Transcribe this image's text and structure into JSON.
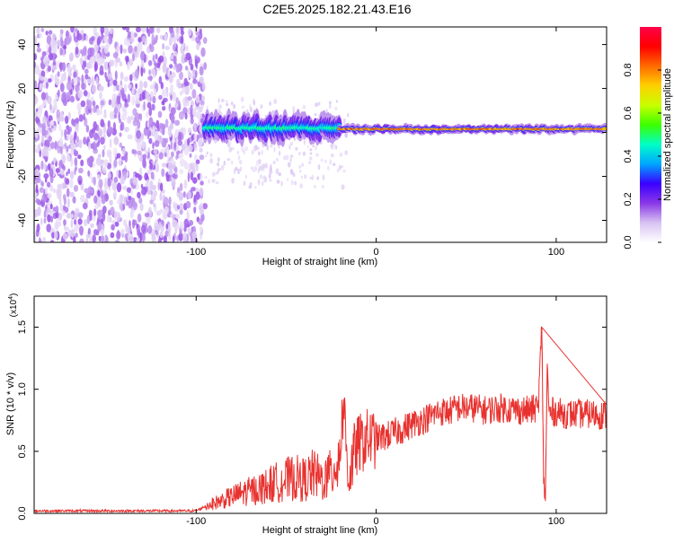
{
  "title": "C2E5.2025.182.21.43.E16",
  "colors": {
    "snr_line": "#e8322f",
    "frame": "#000000"
  },
  "chart_data": [
    {
      "type": "heatmap",
      "xlabel": "Height of straight line (km)",
      "ylabel": "Frequency (Hz)",
      "xlim": [
        -190,
        128
      ],
      "ylim": [
        -50,
        48
      ],
      "x_ticks": [
        -100,
        0,
        100
      ],
      "x_tick_labels": [
        "-100",
        "0",
        "100"
      ],
      "y_ticks": [
        -40,
        -20,
        0,
        20,
        40
      ],
      "y_tick_labels": [
        "-40",
        "-20",
        "0",
        "20",
        "40"
      ],
      "colorbar": {
        "label": "Normalized spectral amplitude",
        "range": [
          0,
          1
        ],
        "ticks": [
          0,
          0.2,
          0.4,
          0.6,
          0.8
        ],
        "tick_labels": [
          "0.0",
          "0.2",
          "0.4",
          "0.6",
          "0.8"
        ],
        "stops": [
          "#ffffff",
          "#d8c3f2",
          "#8a38e6",
          "#3a00ff",
          "#00a6ff",
          "#00ffc8",
          "#3cff00",
          "#c8ff00",
          "#ffd000",
          "#ff6a00",
          "#ff0000",
          "#ff004a"
        ]
      },
      "regions": [
        {
          "x_range": [
            -190,
            -95
          ],
          "freq_range": [
            -50,
            48
          ],
          "level": 0.12,
          "description_level": "broadband noise"
        },
        {
          "x_range": [
            -95,
            -20
          ],
          "center_freq": 2,
          "bandwidth_hz": 12,
          "peak_level": 0.5
        },
        {
          "x_range": [
            -20,
            128
          ],
          "center_freq": 1.5,
          "bandwidth_hz": 4,
          "peak_level": 0.9
        }
      ],
      "grid": false
    },
    {
      "type": "line",
      "xlabel": "Height of straight line (km)",
      "ylabel": "SNR (10 * v/v)",
      "scale_label": "(x10",
      "scale_exponent": "4",
      "scale_suffix": ")",
      "xlim": [
        -190,
        128
      ],
      "ylim": [
        0,
        1.75
      ],
      "x_ticks": [
        -100,
        0,
        100
      ],
      "x_tick_labels": [
        "-100",
        "0",
        "100"
      ],
      "y_ticks": [
        0,
        0.5,
        1.0,
        1.5
      ],
      "y_tick_labels": [
        "0.0",
        "0.5",
        "1.0",
        "1.5"
      ],
      "series": [
        {
          "x": [
            -190,
            -160,
            -130,
            -100,
            -92,
            -85,
            -80,
            -75,
            -70,
            -65,
            -60,
            -55,
            -50,
            -45,
            -40,
            -35,
            -30,
            -25,
            -20,
            -18,
            -16,
            -15,
            -12,
            -10,
            -5,
            0,
            5,
            10,
            15,
            20,
            25,
            30,
            35,
            40,
            45,
            50,
            55,
            60,
            65,
            70,
            75,
            80,
            85,
            90,
            92,
            93,
            94,
            95,
            96,
            97,
            98,
            100,
            105,
            110,
            115,
            120,
            128
          ],
          "y": [
            0.02,
            0.02,
            0.02,
            0.02,
            0.08,
            0.12,
            0.15,
            0.18,
            0.2,
            0.22,
            0.25,
            0.28,
            0.3,
            0.32,
            0.3,
            0.35,
            0.3,
            0.35,
            0.55,
            0.9,
            0.4,
            0.3,
            0.5,
            0.55,
            0.6,
            0.6,
            0.62,
            0.65,
            0.68,
            0.72,
            0.75,
            0.78,
            0.82,
            0.82,
            0.85,
            0.85,
            0.85,
            0.83,
            0.84,
            0.85,
            0.84,
            0.83,
            0.83,
            0.85,
            1.5,
            0.3,
            0.1,
            1.2,
            0.82,
            0.8,
            0.82,
            0.82,
            0.8,
            0.8,
            0.8,
            0.8,
            0.79
          ]
        }
      ],
      "grid": false
    }
  ]
}
